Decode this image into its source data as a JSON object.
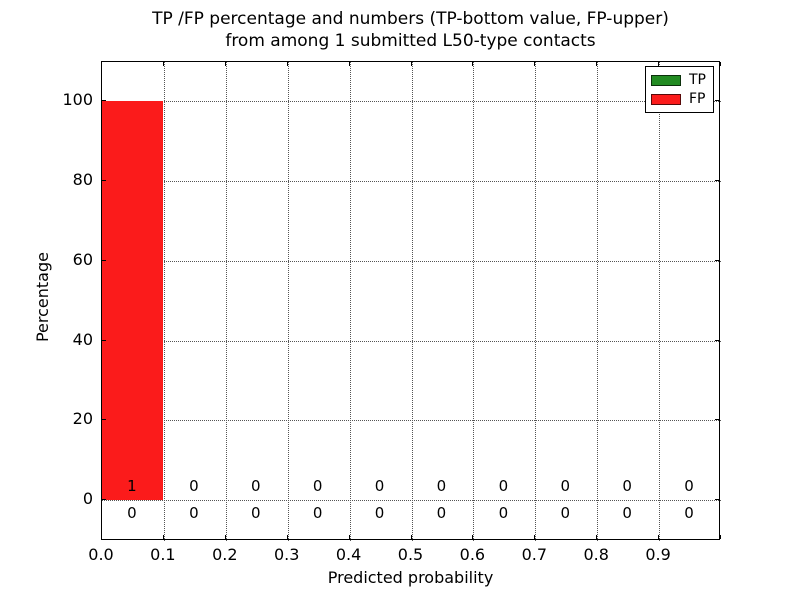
{
  "chart_data": {
    "type": "bar",
    "title_line1": "TP /FP percentage and numbers (TP-bottom value, FP-upper)",
    "title_line2": "from among 1 submitted L50-type contacts",
    "xlabel": "Predicted probability",
    "ylabel": "Percentage",
    "xlim": [
      0.0,
      1.0
    ],
    "ylim": [
      -10.3,
      109.9
    ],
    "grid": "dotted",
    "background": "#ffffff",
    "x_ticks": [
      {
        "value": 0.0,
        "label": "0.0"
      },
      {
        "value": 0.1,
        "label": "0.1"
      },
      {
        "value": 0.2,
        "label": "0.2"
      },
      {
        "value": 0.3,
        "label": "0.3"
      },
      {
        "value": 0.4,
        "label": "0.4"
      },
      {
        "value": 0.5,
        "label": "0.5"
      },
      {
        "value": 0.6,
        "label": "0.6"
      },
      {
        "value": 0.7,
        "label": "0.7"
      },
      {
        "value": 0.8,
        "label": "0.8"
      },
      {
        "value": 0.9,
        "label": "0.9"
      },
      {
        "value": 1.0,
        "label": ""
      }
    ],
    "y_ticks": [
      {
        "value": 0,
        "label": "0"
      },
      {
        "value": 20,
        "label": "20"
      },
      {
        "value": 40,
        "label": "40"
      },
      {
        "value": 60,
        "label": "60"
      },
      {
        "value": 80,
        "label": "80"
      },
      {
        "value": 100,
        "label": "100"
      }
    ],
    "bins": {
      "start": 0.0,
      "width": 0.1,
      "count": 10
    },
    "series": [
      {
        "name": "TP",
        "color": "#228b22",
        "percent": [
          0,
          0,
          0,
          0,
          0,
          0,
          0,
          0,
          0,
          0
        ],
        "counts": [
          0,
          0,
          0,
          0,
          0,
          0,
          0,
          0,
          0,
          0
        ],
        "counts_row": "bottom"
      },
      {
        "name": "FP",
        "color": "#fb1b1b",
        "percent": [
          100,
          0,
          0,
          0,
          0,
          0,
          0,
          0,
          0,
          0
        ],
        "counts": [
          1,
          0,
          0,
          0,
          0,
          0,
          0,
          0,
          0,
          0
        ],
        "counts_row": "upper"
      }
    ],
    "legend": {
      "position": "upper right",
      "entries": [
        "TP",
        "FP"
      ]
    }
  }
}
